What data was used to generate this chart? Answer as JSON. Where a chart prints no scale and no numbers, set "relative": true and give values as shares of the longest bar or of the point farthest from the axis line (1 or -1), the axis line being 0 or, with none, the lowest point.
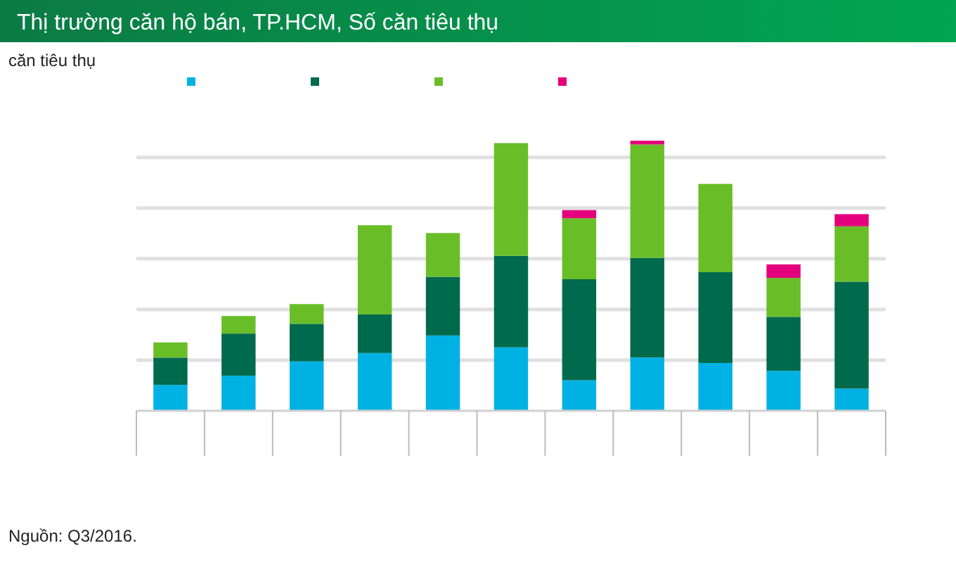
{
  "chart_data": {
    "type": "bar",
    "title": "Thị trường căn hộ bán, TP.HCM, Số căn tiêu thụ",
    "ylabel": "căn tiêu thụ",
    "annotations": [
      "Nguồn: Q3/2016."
    ],
    "relative": true,
    "stacked": true,
    "grid": true,
    "categories": [
      null,
      null,
      null,
      null,
      null,
      null,
      null,
      null,
      null,
      null,
      null
    ],
    "series": [
      {
        "color": "#00b2e3",
        "values": [
          0.096,
          0.13,
          0.183,
          0.214,
          0.279,
          0.235,
          0.113,
          0.197,
          0.177,
          0.148,
          0.082
        ]
      },
      {
        "color": "#006a4d",
        "values": [
          0.101,
          0.156,
          0.139,
          0.143,
          0.217,
          0.339,
          0.374,
          0.369,
          0.336,
          0.2,
          0.396
        ]
      },
      {
        "color": "#69be28",
        "values": [
          0.056,
          0.065,
          0.073,
          0.33,
          0.162,
          0.417,
          0.226,
          0.42,
          0.327,
          0.144,
          0.205
        ]
      },
      {
        "color": "#e4007c",
        "values": [
          0,
          0,
          0,
          0,
          0,
          0,
          0.03,
          0.014,
          0,
          0.05,
          0.045
        ]
      }
    ]
  }
}
